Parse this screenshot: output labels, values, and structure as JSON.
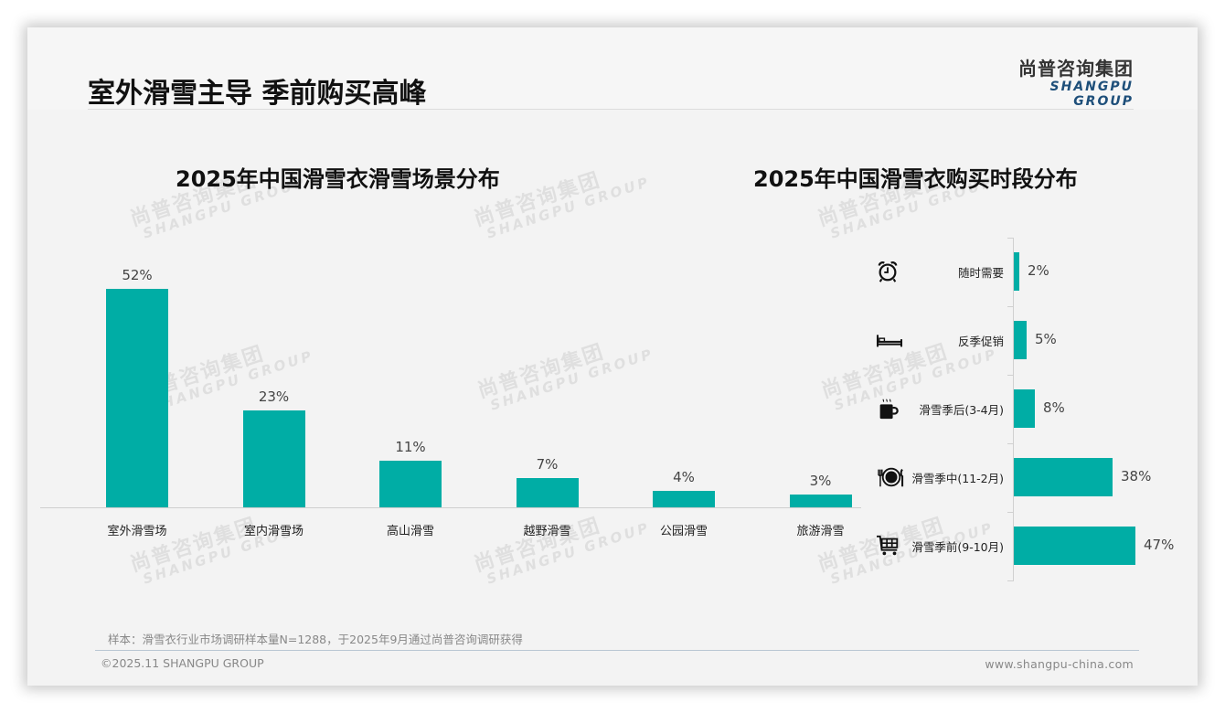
{
  "header": {
    "title": "室外滑雪主导 季前购买高峰",
    "logo_cn": "尚普咨询集团",
    "logo_en": "SHANGPU GROUP"
  },
  "watermark": {
    "cn": "尚普咨询集团",
    "en": "SHANGPU GROUP"
  },
  "colors": {
    "bar": "#00ada5",
    "logo_en": "#1e4f7a",
    "background": "#f3f3f3"
  },
  "chart_data": [
    {
      "type": "bar",
      "title": "2025年中国滑雪衣滑雪场景分布",
      "categories": [
        "室外滑雪场",
        "室内滑雪场",
        "高山滑雪",
        "越野滑雪",
        "公园滑雪",
        "旅游滑雪"
      ],
      "values": [
        52,
        23,
        11,
        7,
        4,
        3
      ],
      "value_labels": [
        "52%",
        "23%",
        "11%",
        "7%",
        "4%",
        "3%"
      ],
      "xlabel": "",
      "ylabel": "",
      "unit": "%",
      "ylim": [
        0,
        60
      ],
      "grid": false,
      "orientation": "vertical"
    },
    {
      "type": "bar",
      "title": "2025年中国滑雪衣购买时段分布",
      "categories": [
        "随时需要",
        "反季促销",
        "滑雪季后(3-4月)",
        "滑雪季中(11-2月)",
        "滑雪季前(9-10月)"
      ],
      "values": [
        2,
        5,
        8,
        38,
        47
      ],
      "value_labels": [
        "2%",
        "5%",
        "8%",
        "38%",
        "47%"
      ],
      "icons": [
        "alarm-clock-icon",
        "bed-icon",
        "hot-coffee-icon",
        "dining-plate-icon",
        "shopping-cart-icon"
      ],
      "xlabel": "",
      "ylabel": "",
      "unit": "%",
      "grid": false,
      "orientation": "horizontal"
    }
  ],
  "footer": {
    "note": "样本：滑雪衣行业市场调研样本量N=1288，于2025年9月通过尚普咨询调研获得",
    "copyright": "©2025.11 SHANGPU GROUP",
    "website": "www.shangpu-china.com"
  }
}
